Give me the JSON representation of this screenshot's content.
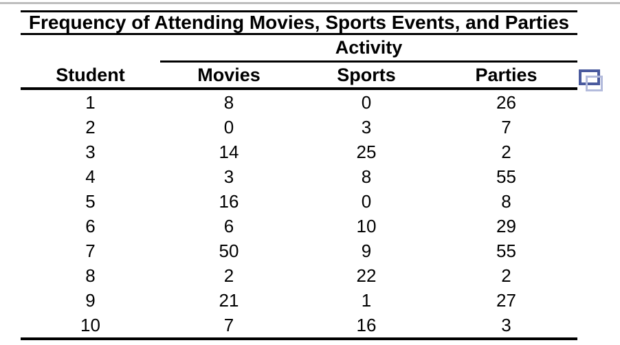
{
  "table": {
    "title": "Frequency of Attending Movies, Sports Events, and Parties",
    "spanner_label": "Activity",
    "columns": [
      "Student",
      "Movies",
      "Sports",
      "Parties"
    ],
    "rows": [
      [
        "1",
        "8",
        "0",
        "26"
      ],
      [
        "2",
        "0",
        "3",
        "7"
      ],
      [
        "3",
        "14",
        "25",
        "2"
      ],
      [
        "4",
        "3",
        "8",
        "55"
      ],
      [
        "5",
        "16",
        "0",
        "8"
      ],
      [
        "6",
        "6",
        "10",
        "29"
      ],
      [
        "7",
        "50",
        "9",
        "55"
      ],
      [
        "8",
        "2",
        "22",
        "2"
      ],
      [
        "9",
        "21",
        "1",
        "27"
      ],
      [
        "10",
        "7",
        "16",
        "3"
      ]
    ]
  },
  "colors": {
    "top_divider": "#bdbdbd",
    "copy_icon_front": "#4a5a9e",
    "copy_icon_back": "#b3bbdc",
    "rule": "#000000"
  },
  "icons": {
    "copy_icon_name": "copy-table-icon"
  }
}
